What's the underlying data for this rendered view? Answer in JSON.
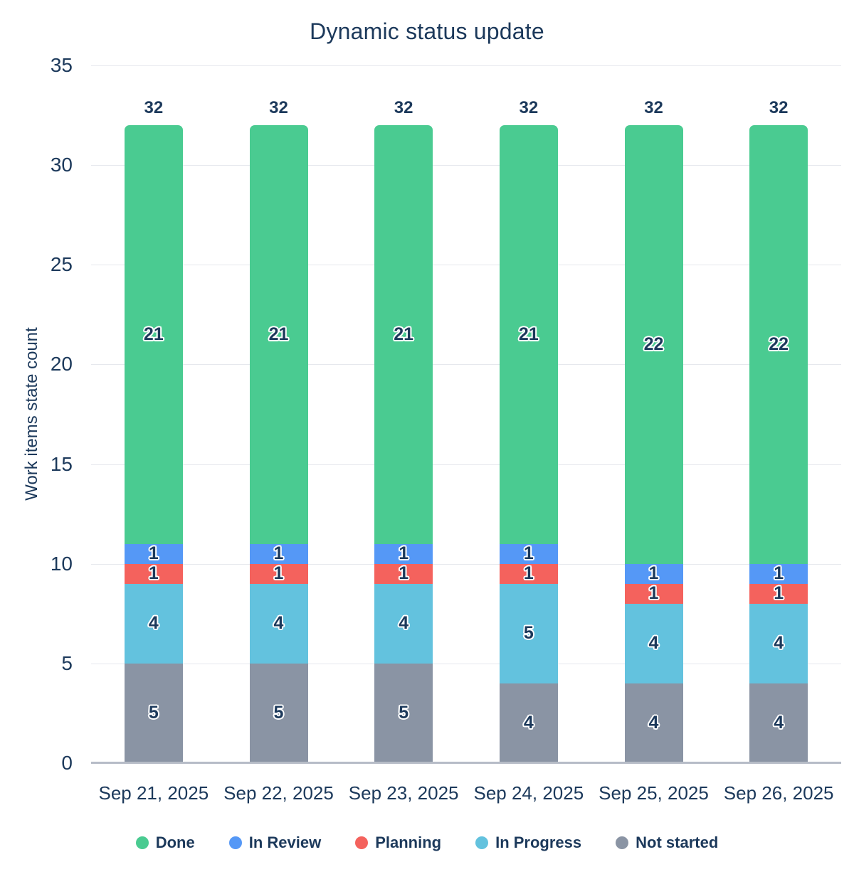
{
  "chart": {
    "title": "Dynamic status update",
    "y_axis_label": "Work items state count"
  },
  "colors": {
    "text": "#1C395B",
    "grid": "#E6E8ED",
    "axis": "#B6BCC7"
  },
  "chart_data": {
    "type": "bar",
    "stacked": true,
    "title": "Dynamic status update",
    "xlabel": "",
    "ylabel": "Work items state count",
    "categories": [
      "Sep 21, 2025",
      "Sep 22, 2025",
      "Sep 23, 2025",
      "Sep 24, 2025",
      "Sep 25, 2025",
      "Sep 26, 2025"
    ],
    "series": [
      {
        "name": "Not started",
        "color": "#8A94A4",
        "values": [
          5,
          5,
          5,
          4,
          4,
          4
        ]
      },
      {
        "name": "In Progress",
        "color": "#63C2DE",
        "values": [
          4,
          4,
          4,
          5,
          4,
          4
        ]
      },
      {
        "name": "Planning",
        "color": "#F4625D",
        "values": [
          1,
          1,
          1,
          1,
          1,
          1
        ]
      },
      {
        "name": "In Review",
        "color": "#5598F6",
        "values": [
          1,
          1,
          1,
          1,
          1,
          1
        ]
      },
      {
        "name": "Done",
        "color": "#4ACB91",
        "values": [
          21,
          21,
          21,
          21,
          22,
          22
        ]
      }
    ],
    "totals": [
      32,
      32,
      32,
      32,
      32,
      32
    ],
    "legend_order": [
      "Done",
      "In Review",
      "Planning",
      "In Progress",
      "Not started"
    ],
    "legend_position": "bottom",
    "ylim": [
      0,
      35
    ],
    "yticks": [
      0,
      5,
      10,
      15,
      20,
      25,
      30,
      35
    ],
    "grid": true
  }
}
